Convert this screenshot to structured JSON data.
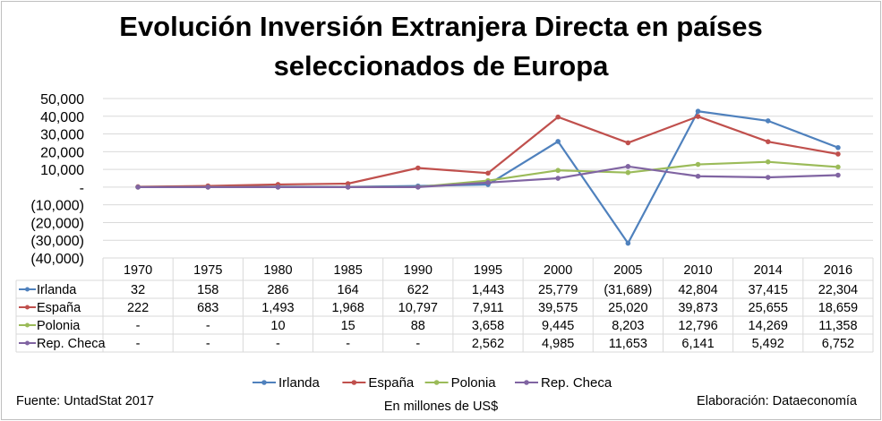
{
  "chart_data": {
    "type": "line",
    "title_lines": [
      "Evolución Inversión Extranjera Directa en países",
      "seleccionados de Europa"
    ],
    "categories": [
      "1970",
      "1975",
      "1980",
      "1985",
      "1990",
      "1995",
      "2000",
      "2005",
      "2010",
      "2014",
      "2016"
    ],
    "ylim": [
      -40000,
      50000
    ],
    "yticks": [
      50000,
      40000,
      30000,
      20000,
      10000,
      0,
      -10000,
      -20000,
      -30000,
      -40000
    ],
    "ytick_labels": [
      "50,000",
      "40,000",
      "30,000",
      "20,000",
      "10,000",
      "-",
      "(10,000)",
      "(20,000)",
      "(30,000)",
      "(40,000)"
    ],
    "grid": true,
    "legend_position": "bottom",
    "series": [
      {
        "name": "Irlanda",
        "color": "#4f81bd",
        "values": [
          32,
          158,
          286,
          164,
          622,
          1443,
          25779,
          -31689,
          42804,
          37415,
          22304
        ],
        "labels": [
          "32",
          "158",
          "286",
          "164",
          "622",
          "1,443",
          "25,779",
          "(31,689)",
          "42,804",
          "37,415",
          "22,304"
        ]
      },
      {
        "name": "España",
        "color": "#c0504d",
        "values": [
          222,
          683,
          1493,
          1968,
          10797,
          7911,
          39575,
          25020,
          39873,
          25655,
          18659
        ],
        "labels": [
          "222",
          "683",
          "1,493",
          "1,968",
          "10,797",
          "7,911",
          "39,575",
          "25,020",
          "39,873",
          "25,655",
          "18,659"
        ]
      },
      {
        "name": "Polonia",
        "color": "#9bbb59",
        "values": [
          null,
          null,
          10,
          15,
          88,
          3658,
          9445,
          8203,
          12796,
          14269,
          11358
        ],
        "labels": [
          "-",
          "-",
          "10",
          "15",
          "88",
          "3,658",
          "9,445",
          "8,203",
          "12,796",
          "14,269",
          "11,358"
        ]
      },
      {
        "name": "Rep. Checa",
        "color": "#8064a2",
        "values": [
          null,
          null,
          null,
          null,
          null,
          2562,
          4985,
          11653,
          6141,
          5492,
          6752
        ],
        "labels": [
          "-",
          "-",
          "-",
          "-",
          "-",
          "2,562",
          "4,985",
          "11,653",
          "6,141",
          "5,492",
          "6,752"
        ]
      }
    ],
    "data_table": true
  },
  "footer": {
    "source": "Fuente: UntadStat 2017",
    "units": "En millones de US$",
    "credit": "Elaboración: Dataeconomía"
  }
}
